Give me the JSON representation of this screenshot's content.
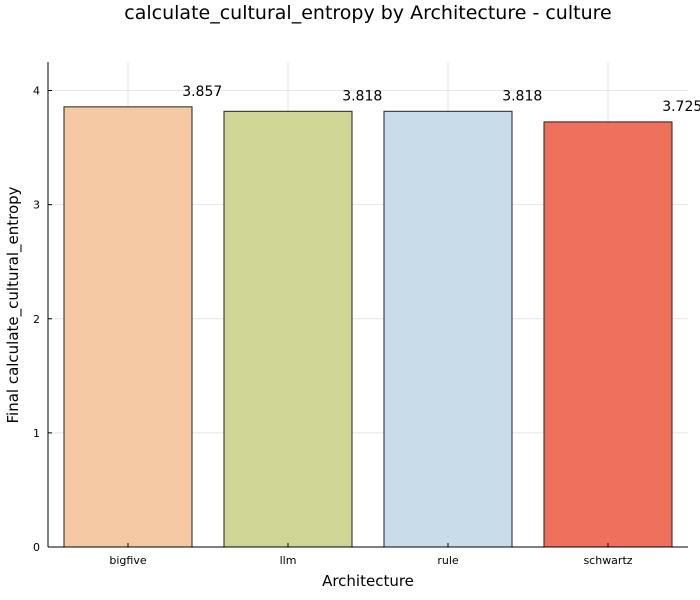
{
  "chart_data": {
    "type": "bar",
    "title": "calculate_cultural_entropy by Architecture - culture",
    "xlabel": "Architecture",
    "ylabel": "Final calculate_cultural_entropy",
    "categories": [
      "bigfive",
      "llm",
      "rule",
      "schwartz"
    ],
    "values": [
      3.857,
      3.818,
      3.818,
      3.725
    ],
    "data_labels": [
      "3.857",
      "3.818",
      "3.818",
      "3.725"
    ],
    "colors": [
      "#f5c9a3",
      "#cfd595",
      "#c9dcea",
      "#ef705b"
    ],
    "ylim": [
      0,
      4.25
    ],
    "yticks": [
      0,
      1,
      2,
      3,
      4
    ],
    "ytick_labels": [
      "0",
      "1",
      "2",
      "3",
      "4"
    ],
    "grid": true,
    "legend": "none"
  }
}
